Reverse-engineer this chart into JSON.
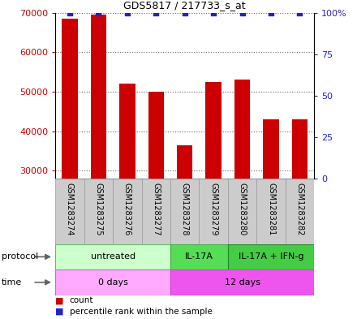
{
  "title": "GDS5817 / 217733_s_at",
  "samples": [
    "GSM1283274",
    "GSM1283275",
    "GSM1283276",
    "GSM1283277",
    "GSM1283278",
    "GSM1283279",
    "GSM1283280",
    "GSM1283281",
    "GSM1283282"
  ],
  "counts": [
    68500,
    69500,
    52000,
    50000,
    36500,
    52500,
    53000,
    43000,
    43000
  ],
  "percentile_ranks": [
    100,
    100,
    100,
    100,
    100,
    100,
    100,
    100,
    100
  ],
  "bar_color": "#cc0000",
  "dot_color": "#2222cc",
  "ylim_left": [
    28000,
    70000
  ],
  "yticks_left": [
    30000,
    40000,
    50000,
    60000,
    70000
  ],
  "ylim_right": [
    0,
    100
  ],
  "yticks_right": [
    0,
    25,
    50,
    75,
    100
  ],
  "protocol_groups": [
    {
      "label": "untreated",
      "start": 0,
      "end": 4,
      "color": "#ccffcc",
      "border_color": "#66bb66"
    },
    {
      "label": "IL-17A",
      "start": 4,
      "end": 6,
      "color": "#55dd55",
      "border_color": "#44aa44"
    },
    {
      "label": "IL-17A + IFN-g",
      "start": 6,
      "end": 9,
      "color": "#44cc44",
      "border_color": "#228822"
    }
  ],
  "time_groups": [
    {
      "label": "0 days",
      "start": 0,
      "end": 4,
      "color": "#ffaaff",
      "border_color": "#cc66cc"
    },
    {
      "label": "12 days",
      "start": 4,
      "end": 9,
      "color": "#ee55ee",
      "border_color": "#cc44cc"
    }
  ],
  "legend_items": [
    {
      "label": "count",
      "color": "#cc0000"
    },
    {
      "label": "percentile rank within the sample",
      "color": "#2222cc"
    }
  ],
  "left_tick_color": "#cc0000",
  "right_tick_color": "#2222cc",
  "label_bg_color": "#cccccc",
  "label_border_color": "#999999",
  "background_color": "#ffffff"
}
